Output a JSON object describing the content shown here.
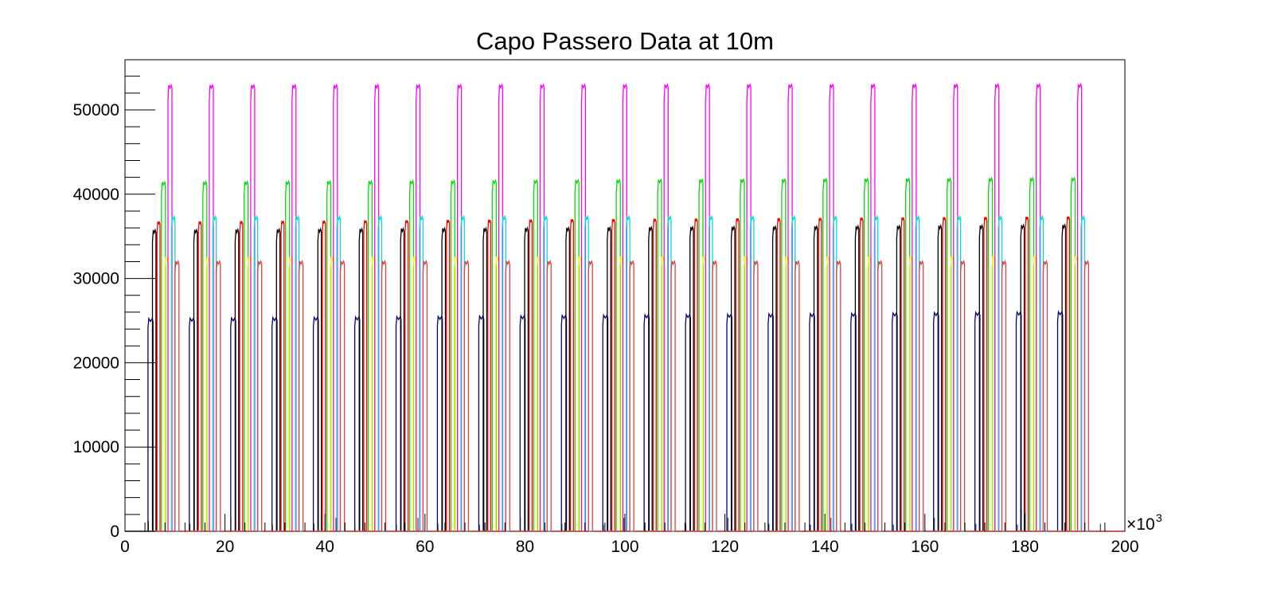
{
  "chart_data": {
    "type": "line",
    "title": "Capo Passero Data at 10m",
    "xlabel": "",
    "ylabel": "",
    "x_multiplier_label": "×10",
    "x_multiplier_exponent": "3",
    "xlim": [
      0,
      200
    ],
    "ylim": [
      0,
      55000
    ],
    "x_ticks": [
      0,
      20,
      40,
      60,
      80,
      100,
      120,
      140,
      160,
      180,
      200
    ],
    "x_tick_labels": [
      "0",
      "20",
      "40",
      "60",
      "80",
      "100",
      "120",
      "140",
      "160",
      "180",
      "200"
    ],
    "y_ticks": [
      0,
      10000,
      20000,
      30000,
      40000,
      50000
    ],
    "y_tick_labels": [
      "0",
      "10000",
      "20000",
      "30000",
      "40000",
      "50000"
    ],
    "grid": false,
    "legend": "none",
    "pulse_period": 8.27,
    "pulse_count": 23,
    "baseline_spikes": [
      {
        "x": 4.7,
        "y": 1200
      },
      {
        "x": 13.0,
        "y": 900
      },
      {
        "x": 21.2,
        "y": 1600
      },
      {
        "x": 29.5,
        "y": 800
      },
      {
        "x": 37.8,
        "y": 900
      },
      {
        "x": 42.2,
        "y": 1600
      },
      {
        "x": 46.0,
        "y": 900
      },
      {
        "x": 54.3,
        "y": 800
      },
      {
        "x": 58.6,
        "y": 1600
      },
      {
        "x": 62.6,
        "y": 900
      },
      {
        "x": 70.9,
        "y": 800
      },
      {
        "x": 79.1,
        "y": 1600
      },
      {
        "x": 87.4,
        "y": 900
      },
      {
        "x": 95.7,
        "y": 800
      },
      {
        "x": 99.8,
        "y": 1600
      },
      {
        "x": 104.0,
        "y": 900
      },
      {
        "x": 112.2,
        "y": 800
      },
      {
        "x": 120.6,
        "y": 1600
      },
      {
        "x": 128.8,
        "y": 900
      },
      {
        "x": 137.1,
        "y": 800
      },
      {
        "x": 141.2,
        "y": 1600
      },
      {
        "x": 145.4,
        "y": 900
      },
      {
        "x": 153.7,
        "y": 800
      },
      {
        "x": 161.9,
        "y": 1600
      },
      {
        "x": 170.2,
        "y": 900
      },
      {
        "x": 178.5,
        "y": 800
      },
      {
        "x": 195.1,
        "y": 900
      }
    ],
    "series": [
      {
        "name": "navy",
        "color": "#000080",
        "start": 4.6,
        "width": 1.0,
        "level_start": 24900,
        "level_end": 25700
      },
      {
        "name": "black",
        "color": "#000000",
        "start": 5.5,
        "width": 0.7,
        "level_start": 35400,
        "level_end": 36000
      },
      {
        "name": "red",
        "color": "#ff0000",
        "start": 6.4,
        "width": 0.6,
        "level_start": 36400,
        "level_end": 37000
      },
      {
        "name": "green",
        "color": "#00dd00",
        "start": 7.3,
        "width": 0.8,
        "level_start": 41100,
        "level_end": 41600
      },
      {
        "name": "yellow",
        "color": "#ffff00",
        "start": 8.0,
        "width": 0.7,
        "level_start": 32200,
        "level_end": 32300
      },
      {
        "name": "magenta",
        "color": "#ff00ff",
        "start": 8.6,
        "width": 0.8,
        "level_start": 52600,
        "level_end": 52700
      },
      {
        "name": "cyan",
        "color": "#00dddd",
        "start": 9.3,
        "width": 0.7,
        "level_start": 37000,
        "level_end": 37000
      },
      {
        "name": "salmon",
        "color": "#e04040",
        "start": 10.0,
        "width": 0.8,
        "level_start": 31700,
        "level_end": 31700
      }
    ]
  }
}
